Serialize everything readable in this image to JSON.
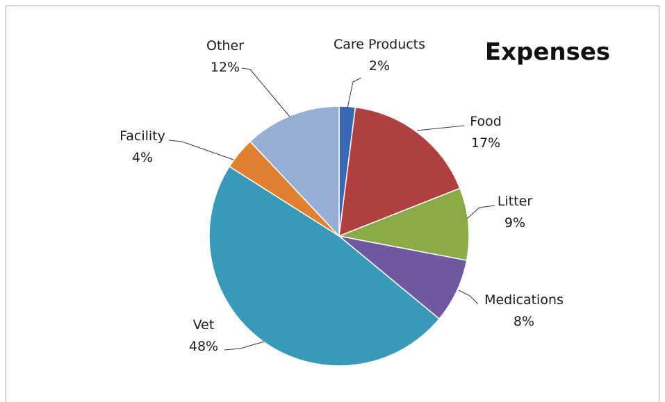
{
  "chart_data": {
    "type": "pie",
    "title": "Expenses",
    "slices": [
      {
        "name": "Care Products",
        "value": 2,
        "label": "2%",
        "color": "#3a68b0"
      },
      {
        "name": "Food",
        "value": 17,
        "label": "17%",
        "color": "#b04040"
      },
      {
        "name": "Litter",
        "value": 9,
        "label": "9%",
        "color": "#8aaa48"
      },
      {
        "name": "Medications",
        "value": 8,
        "label": "8%",
        "color": "#7058a0"
      },
      {
        "name": "Vet",
        "value": 48,
        "label": "48%",
        "color": "#3a98b8"
      },
      {
        "name": "Facility",
        "value": 4,
        "label": "4%",
        "color": "#e08030"
      },
      {
        "name": "Other",
        "value": 12,
        "label": "12%",
        "color": "#96aed4"
      }
    ],
    "legend": "none",
    "data_labels": "outside-with-leader-lines"
  }
}
